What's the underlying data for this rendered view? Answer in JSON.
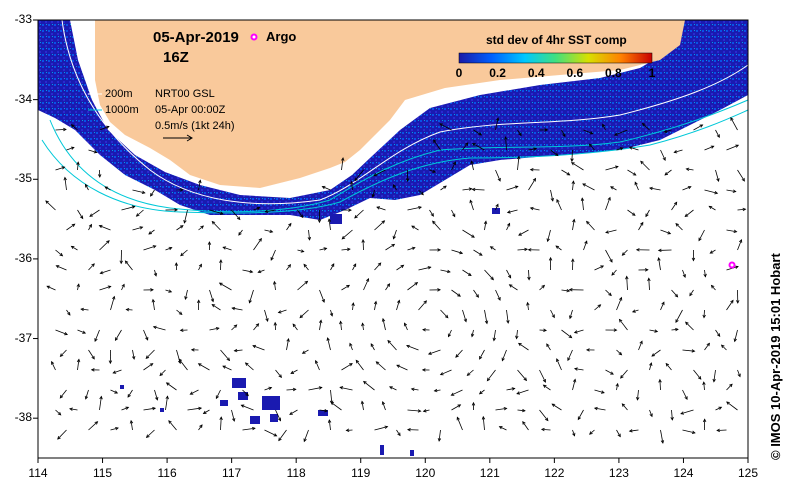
{
  "map": {
    "date": "05-Apr-2019",
    "hour": "16Z",
    "argo_label": "Argo",
    "legend": {
      "isobath_200": "200m",
      "isobath_1000": "1000m",
      "product": "NRT00 GSL",
      "product_time": "05-Apr 00:00Z",
      "scale_label": "0.5m/s (1kt 24h)"
    },
    "colorbar": {
      "title": "std dev of 4hr SST comp",
      "ticks": [
        "0",
        "0.2",
        "0.4",
        "0.6",
        "0.8",
        "1"
      ],
      "colors": [
        "#1a1aa8",
        "#0060ff",
        "#00c8ff",
        "#40e080",
        "#d8e000",
        "#ff8000",
        "#c80000"
      ]
    },
    "credit": "© IMOS 10-Apr-2019 15:01 Hobart",
    "lon_ticks": [
      "114",
      "115",
      "116",
      "117",
      "118",
      "119",
      "120",
      "121",
      "122",
      "123",
      "124",
      "125"
    ],
    "lat_ticks": [
      "-33",
      "-34",
      "-35",
      "-36",
      "-37",
      "-38"
    ],
    "argo_float": {
      "lon": 124.7,
      "lat": -36.07
    },
    "land_color": "#f9c99b",
    "ocean_color": "#ffffff",
    "coverage_color": "#1a1ab0",
    "isobath_200_color": "#ffffff",
    "isobath_1000_color": "#00c8d8",
    "argo_color": "#ff00ff"
  }
}
